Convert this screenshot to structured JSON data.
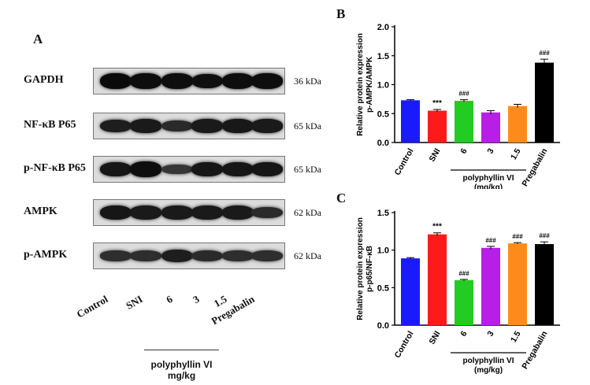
{
  "panelA": {
    "letter": "A",
    "rows": [
      {
        "label": "GAPDH",
        "kda": "36 kDa",
        "intensity": [
          1.0,
          0.95,
          0.95,
          0.92,
          0.95,
          0.95
        ]
      },
      {
        "label": "NF-κB P65",
        "kda": "65 kDa",
        "intensity": [
          0.75,
          0.8,
          0.6,
          0.8,
          0.82,
          0.8
        ]
      },
      {
        "label": "p-NF-κB P65",
        "kda": "65 kDa",
        "intensity": [
          0.85,
          0.95,
          0.45,
          0.85,
          0.85,
          0.85
        ]
      },
      {
        "label": "AMPK",
        "kda": "62 kDa",
        "intensity": [
          0.85,
          0.8,
          0.8,
          0.8,
          0.8,
          0.6
        ]
      },
      {
        "label": "p-AMPK",
        "kda": "62 kDa",
        "intensity": [
          0.55,
          0.55,
          0.75,
          0.6,
          0.55,
          0.55
        ]
      }
    ],
    "lanes": [
      "Control",
      "SNI",
      "6",
      "3",
      "1.5",
      "Pregabalin"
    ],
    "group_label_1": "polyphyllin VI",
    "group_label_2": "mg/kg"
  },
  "chart_data": [
    {
      "panel": "B",
      "type": "bar",
      "ylabel_1": "Relative protein expression",
      "ylabel_2": "p-AMPK/AMPK",
      "ylim": [
        0,
        2.0
      ],
      "yticks": [
        "0.0",
        "0.5",
        "1.0",
        "1.5",
        "2.0"
      ],
      "categories": [
        "Control",
        "SNI",
        "6",
        "3",
        "1.5",
        "Pregabalin"
      ],
      "values": [
        0.73,
        0.55,
        0.72,
        0.52,
        0.63,
        1.38
      ],
      "errors": [
        0.01,
        0.02,
        0.02,
        0.03,
        0.03,
        0.06
      ],
      "annotations": [
        "",
        "***",
        "###",
        "",
        "",
        "###"
      ],
      "colors": [
        "#1a1aff",
        "#ff1a1a",
        "#22cc22",
        "#b81ee8",
        "#ff8c1a",
        "#000000"
      ],
      "group_label_1": "polyphyllin VI",
      "group_label_2": "(mg/kg)"
    },
    {
      "panel": "C",
      "type": "bar",
      "ylabel_1": "Relative protein expression",
      "ylabel_2": "p-p65/NF-κB",
      "ylim": [
        0,
        1.5
      ],
      "yticks": [
        "0.0",
        "0.5",
        "1.0",
        "1.5"
      ],
      "categories": [
        "Control",
        "SNI",
        "6",
        "3",
        "1.5",
        "Pregabalin"
      ],
      "values": [
        0.89,
        1.21,
        0.6,
        1.03,
        1.09,
        1.08
      ],
      "errors": [
        0.01,
        0.02,
        0.01,
        0.02,
        0.01,
        0.03
      ],
      "annotations": [
        "",
        "***",
        "###",
        "###",
        "###",
        "###"
      ],
      "colors": [
        "#1a1aff",
        "#ff1a1a",
        "#22cc22",
        "#b81ee8",
        "#ff8c1a",
        "#000000"
      ],
      "group_label_1": "polyphyllin VI",
      "group_label_2": "(mg/kg)"
    }
  ]
}
